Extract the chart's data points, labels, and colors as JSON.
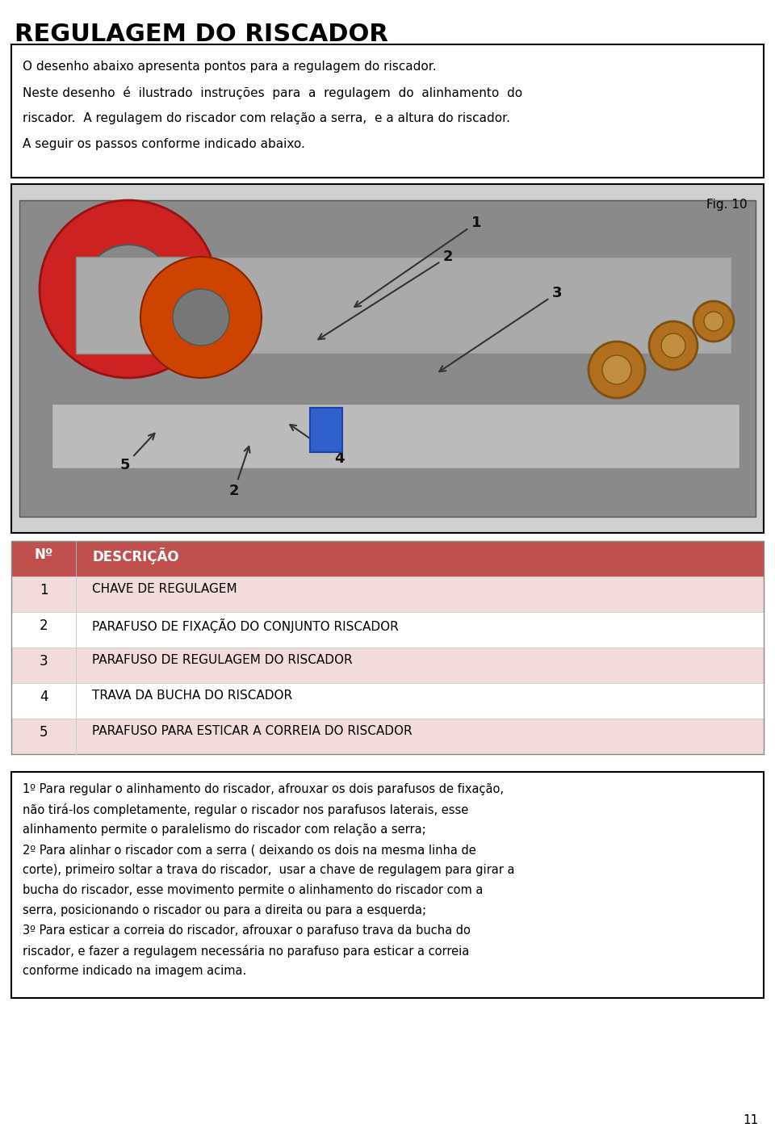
{
  "page_title": "REGULAGEM DO RISCADOR",
  "intro_text": "O desenho abaixo apresenta pontos para a regulagem do riscador.\nNeste desenho é ilustrado instruções para a regulagem do alinhamento do riscador.  A regulagem do riscador com relação a serra,  e a altura do riscador.\nA seguir os passos conforme indicado abaixo.",
  "fig_label": "Fig. 10",
  "table_header_bg": "#c0504d",
  "table_header_text": "#ffffff",
  "table_row_odd_bg": "#f2dcdb",
  "table_row_even_bg": "#ffffff",
  "table_col1_header": "Nº",
  "table_col2_header": "DESCRIÇÃO",
  "table_rows": [
    [
      "1",
      "CHAVE DE REGULAGEM"
    ],
    [
      "2",
      "PARAFUSO DE FIXAÇÃO DO CONJUNTO RISCADOR"
    ],
    [
      "3",
      "PARAFUSO DE REGULAGEM DO RISCADOR"
    ],
    [
      "4",
      "TRAVA DA BUCHA DO RISCADOR"
    ],
    [
      "5",
      "PARAFUSO PARA ESTICAR A CORREIA DO RISCADOR"
    ]
  ],
  "notes_text": "1º Para regular o alinhamento do riscador, afrouxar os dois parafusos de fixação, não tirá-los completamente, regular o riscador nos parafusos laterais, esse alinhamento permite o paralelismo do riscador com relação a serra;\n2º Para alinhar o riscador com a serra ( deixando os dois na mesma linha de corte), primeiro soltar a trava do riscador,  usar a chave de regulagem para girar a bucha do riscador, esse movimento permite o alinhamento do riscador com a serra, posicionando o riscador ou para a direita ou para a esquerda;\n3º Para esticar a correia do riscador, afrouxar o parafuso trava da bucha do riscador, e fazer a regulagem necessária no parafuso para esticar a correia conforme indicado na imagem acima.",
  "page_number": "11",
  "bg_color": "#ffffff",
  "border_color": "#000000",
  "title_color": "#000000",
  "text_color": "#000000"
}
